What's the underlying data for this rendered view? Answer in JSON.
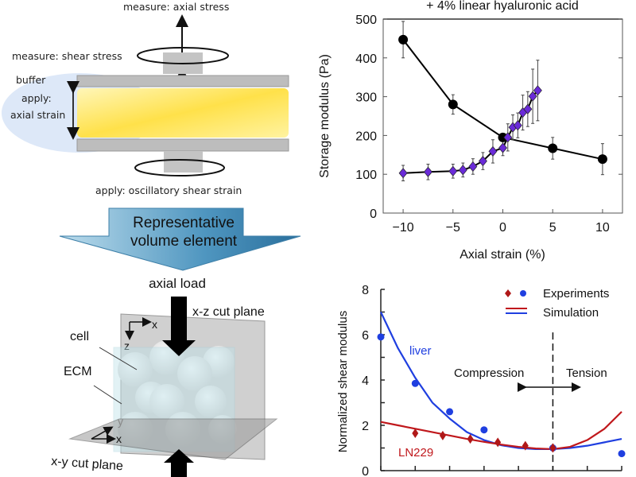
{
  "rheometer": {
    "measure_axial": "measure: axial stress",
    "measure_shear": "measure: shear stress",
    "buffer": "buffer",
    "apply_line1": "apply:",
    "apply_line2": "axial strain",
    "apply_oscillatory": "apply: oscillatory shear strain"
  },
  "rve_arrow": {
    "line1": "Representative",
    "line2": "volume element"
  },
  "rve": {
    "axial_load": "axial load",
    "xz_plane": "x-z cut plane",
    "xy_plane": "x-y cut plane",
    "cell": "cell",
    "ecm": "ECM",
    "axis_x": "x",
    "axis_z": "z",
    "axis_y": "y"
  },
  "chart_data": [
    {
      "type": "line",
      "title": "+ 4% linear hyaluronic acid",
      "xlabel": "Axial strain (%)",
      "ylabel": "Storage modulus (Pa)",
      "xlim": [
        -12,
        12
      ],
      "ylim": [
        0,
        500
      ],
      "xticks": [
        "-10",
        "-5",
        "0",
        "5",
        "10"
      ],
      "xtick_values": [
        -10,
        -5,
        0,
        5,
        10
      ],
      "yticks": [
        "0",
        "100",
        "200",
        "300",
        "400",
        "500"
      ],
      "ytick_values": [
        0,
        100,
        200,
        300,
        400,
        500
      ],
      "series": [
        {
          "name": "black-circles",
          "marker": "circle",
          "color": "#000000",
          "x": [
            -10,
            -5,
            0,
            5,
            10
          ],
          "y": [
            447,
            280,
            195,
            167,
            139
          ],
          "err": [
            47,
            25,
            0,
            28,
            40
          ]
        },
        {
          "name": "purple-diamonds",
          "marker": "diamond",
          "color": "#6a2bd8",
          "x": [
            -10,
            -7.5,
            -5,
            -4,
            -3,
            -2,
            -1,
            0,
            0.5,
            1,
            1.5,
            2,
            2.5,
            3,
            3.5
          ],
          "y": [
            103,
            106,
            108,
            111,
            120,
            134,
            159,
            168,
            195,
            221,
            226,
            259,
            268,
            301,
            316
          ],
          "err": [
            20,
            20,
            18,
            18,
            20,
            22,
            30,
            20,
            35,
            32,
            32,
            45,
            45,
            70,
            78
          ]
        }
      ]
    },
    {
      "type": "line",
      "title": "",
      "xlabel": "",
      "ylabel": "Normalized  shear modulus",
      "xlim": [
        0,
        7
      ],
      "ylim": [
        0,
        8
      ],
      "yticks": [
        "0",
        "2",
        "4",
        "6",
        "8"
      ],
      "ytick_values": [
        0,
        2,
        4,
        6,
        8
      ],
      "xtick_values": [
        0,
        1,
        2,
        3,
        4,
        5,
        6,
        7
      ],
      "divider_x": 5,
      "legend": {
        "experiments": "Experiments",
        "simulation": "Simulation",
        "placement": "top-right"
      },
      "annotations": {
        "liver": "liver",
        "ln229": "LN229",
        "compression": "Compression",
        "tension": "Tension"
      },
      "series": [
        {
          "name": "liver",
          "color": "#1f3fe0",
          "exp_x": [
            0,
            1,
            2,
            3,
            5,
            7
          ],
          "exp_y": [
            5.9,
            3.85,
            2.6,
            1.8,
            1.0,
            0.75
          ],
          "sim_x": [
            0,
            0.5,
            1,
            1.5,
            2,
            2.5,
            3,
            3.5,
            4,
            4.5,
            5,
            5.5,
            6,
            6.5,
            7
          ],
          "sim_y": [
            7.0,
            5.4,
            4.1,
            3.0,
            2.3,
            1.7,
            1.35,
            1.12,
            1.0,
            0.95,
            0.95,
            1.0,
            1.1,
            1.25,
            1.4
          ]
        },
        {
          "name": "LN229",
          "color": "#c0181c",
          "exp_x": [
            1,
            1.8,
            2.6,
            3.4,
            4.2,
            5
          ],
          "exp_y": [
            1.65,
            1.55,
            1.4,
            1.25,
            1.1,
            1.0
          ],
          "sim_x": [
            0,
            0.5,
            1,
            1.5,
            2,
            2.5,
            3,
            3.5,
            4,
            4.5,
            5,
            5.5,
            6,
            6.5,
            7
          ],
          "sim_y": [
            2.15,
            2.0,
            1.85,
            1.7,
            1.55,
            1.4,
            1.27,
            1.15,
            1.05,
            0.98,
            0.95,
            1.05,
            1.35,
            1.85,
            2.6
          ]
        }
      ]
    }
  ]
}
